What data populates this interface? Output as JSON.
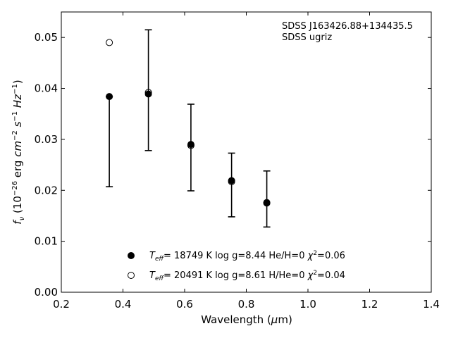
{
  "chart_data": {
    "type": "scatter",
    "xlabel": "Wavelength (μm)",
    "ylabel": "f_ν (10^-26 erg cm^-2 s^-1 Hz^-1)",
    "xlim": [
      0.2,
      1.4
    ],
    "ylim": [
      0.0,
      0.055
    ],
    "xticks": [
      "0.2",
      "0.4",
      "0.6",
      "0.8",
      "1.0",
      "1.2",
      "1.4"
    ],
    "yticks": [
      "0.00",
      "0.01",
      "0.02",
      "0.03",
      "0.04",
      "0.05"
    ],
    "annotation": [
      "SDSS J163426.88+134435.5",
      "SDSS ugriz"
    ],
    "observed": {
      "x": [
        0.3557,
        0.4825,
        0.6204,
        0.7523,
        0.8665
      ],
      "y": [
        0.0384,
        0.0397,
        0.0284,
        0.021,
        0.0183
      ],
      "yerr_low": [
        0.0177,
        0.0119,
        0.0085,
        0.0062,
        0.0055
      ],
      "yerr_high": [
        0.0,
        0.0118,
        0.0085,
        0.0063,
        0.0055
      ]
    },
    "series": [
      {
        "name": "T_eff= 18749 K  log g=8.44  He/H=0  χ²=0.06",
        "marker": "filled-circle",
        "x": [
          0.3557,
          0.4825,
          0.6204,
          0.7523,
          0.8665
        ],
        "y": [
          0.0384,
          0.0389,
          0.029,
          0.0219,
          0.0175
        ]
      },
      {
        "name": "T_eff= 20491 K  log g=8.61  H/He=0  χ²=0.04",
        "marker": "open-circle",
        "x": [
          0.3557,
          0.4825,
          0.6204,
          0.7523,
          0.8665
        ],
        "y": [
          0.049,
          0.0392,
          0.0288,
          0.0217,
          0.0176
        ]
      }
    ]
  },
  "labels": {
    "annotation_line1": "SDSS J163426.88+134435.5",
    "annotation_line2": "SDSS ugriz",
    "legend1_temp": "18749",
    "legend1_logg": "8.44",
    "legend1_comp": "He/H=0",
    "legend1_chi": "=0.06",
    "legend2_temp": "20491",
    "legend2_logg": "8.61",
    "legend2_comp": "H/He=0",
    "legend2_chi": "=0.04"
  }
}
